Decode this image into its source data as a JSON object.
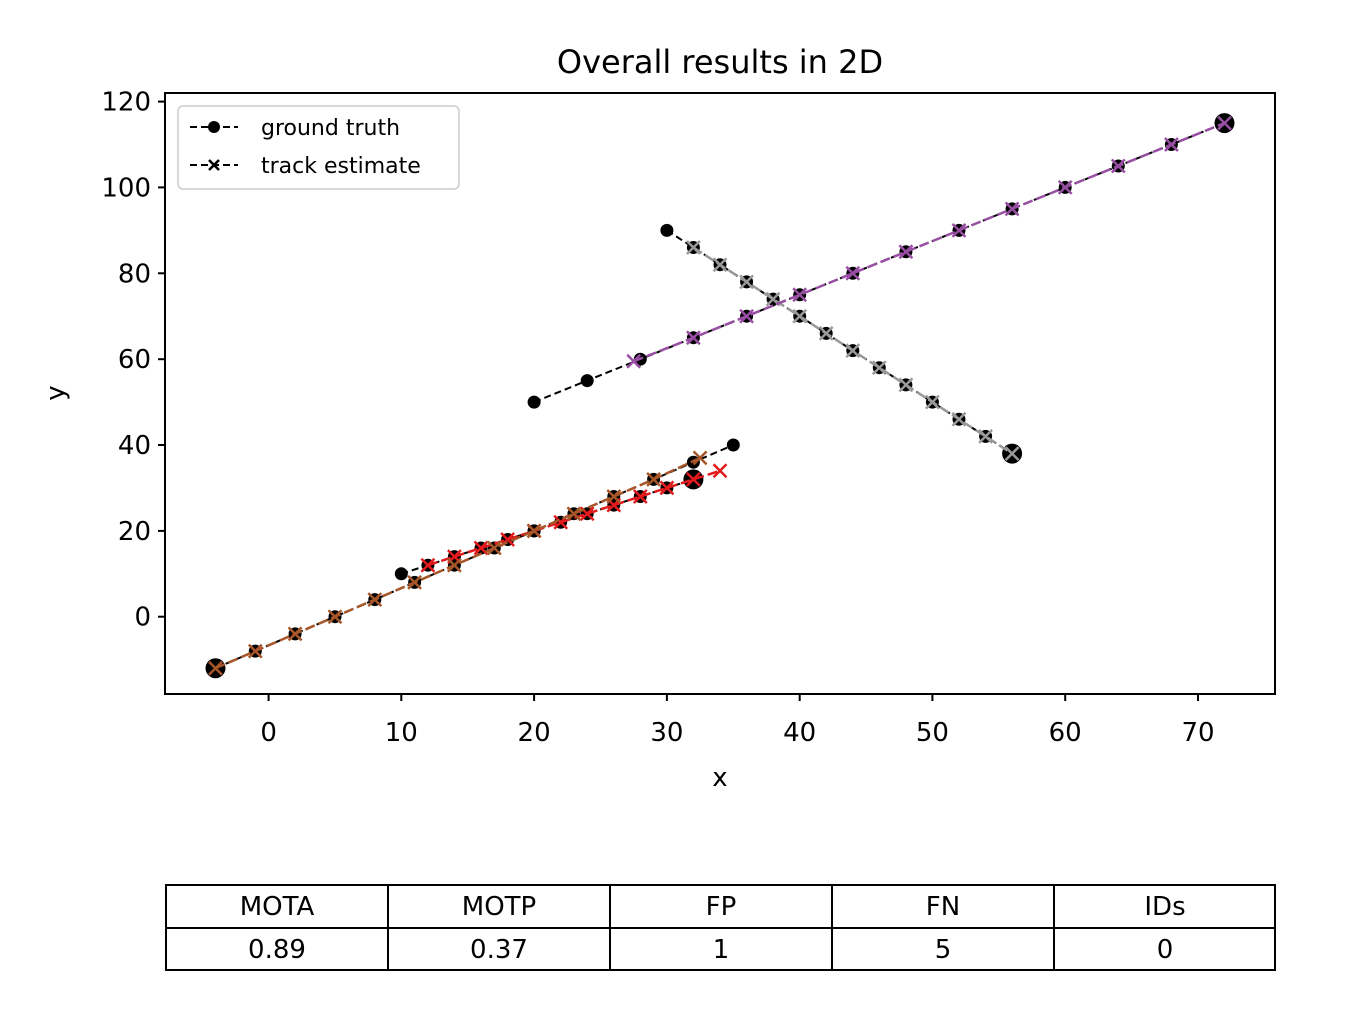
{
  "chart_data": {
    "type": "line",
    "title": "Overall results in 2D",
    "xlabel": "x",
    "ylabel": "y",
    "xlim": [
      -7.8,
      75.8
    ],
    "ylim": [
      -18,
      122
    ],
    "xticks": [
      0,
      10,
      20,
      30,
      40,
      50,
      60,
      70
    ],
    "yticks": [
      0,
      20,
      40,
      60,
      80,
      100,
      120
    ],
    "grid": false,
    "legend": {
      "position": "top-left",
      "entries": [
        {
          "label": "ground truth",
          "marker": "circle",
          "line": "dashed",
          "color": "#000000"
        },
        {
          "label": "track estimate",
          "marker": "x",
          "line": "dashed",
          "color": "#000000"
        }
      ]
    },
    "ground_truth": [
      {
        "x": [
          30,
          32,
          34,
          36,
          38,
          40,
          42,
          44,
          46,
          48,
          50,
          52,
          54,
          56
        ],
        "y": [
          90,
          86,
          82,
          78,
          74,
          70,
          66,
          62,
          58,
          54,
          50,
          46,
          42,
          38
        ]
      },
      {
        "x": [
          20,
          24,
          28,
          32,
          36,
          40,
          44,
          48,
          52,
          56,
          60,
          64,
          68,
          72
        ],
        "y": [
          50,
          55,
          60,
          65,
          70,
          75,
          80,
          85,
          90,
          95,
          100,
          105,
          110,
          115
        ]
      },
      {
        "x": [
          10,
          12,
          14,
          16,
          18,
          20,
          22,
          24,
          26,
          28,
          30,
          32
        ],
        "y": [
          10,
          12,
          14,
          16,
          18,
          20,
          22,
          24,
          26,
          28,
          30,
          32
        ]
      },
      {
        "x": [
          -4,
          -1,
          2,
          5,
          8,
          11,
          14,
          17,
          20,
          23,
          26,
          29,
          32,
          35
        ],
        "y": [
          -12,
          -8,
          -4,
          0,
          4,
          8,
          12,
          16,
          20,
          24,
          28,
          32,
          36,
          40
        ]
      }
    ],
    "track_estimates": [
      {
        "color": "#999999",
        "x": [
          32,
          34,
          36,
          38,
          40,
          42,
          44,
          46,
          48,
          50,
          52,
          54,
          56
        ],
        "y": [
          86,
          82,
          78,
          74,
          70,
          66,
          62,
          58,
          54,
          50,
          46,
          42,
          38
        ]
      },
      {
        "color": "#984ea3",
        "x": [
          27.5,
          32,
          36,
          40,
          44,
          48,
          52,
          56,
          60,
          64,
          68,
          72
        ],
        "y": [
          59.5,
          65,
          70,
          75,
          80,
          85,
          90,
          95,
          100,
          105,
          110,
          115
        ]
      },
      {
        "color": "#e41a1c",
        "x": [
          12,
          14,
          16,
          18,
          20,
          22,
          24,
          26,
          28,
          30,
          32,
          34
        ],
        "y": [
          12,
          14,
          16,
          18,
          20,
          22,
          24,
          26,
          28,
          30,
          32,
          34
        ]
      },
      {
        "color": "#a65628",
        "x": [
          -4,
          -1,
          2,
          5,
          8,
          11,
          14,
          17,
          20,
          23,
          26,
          29,
          32.5
        ],
        "y": [
          -12,
          -8,
          -4,
          0,
          4,
          8,
          12,
          16,
          20,
          24,
          28,
          32,
          37
        ]
      }
    ],
    "final_points": [
      {
        "x": 56,
        "y": 38
      },
      {
        "x": 72,
        "y": 115
      },
      {
        "x": 32,
        "y": 32
      },
      {
        "x": -4,
        "y": -12
      }
    ]
  },
  "metrics_table": {
    "headers": [
      "MOTA",
      "MOTP",
      "FP",
      "FN",
      "IDs"
    ],
    "values": [
      "0.89",
      "0.37",
      "1",
      "5",
      "0"
    ]
  }
}
